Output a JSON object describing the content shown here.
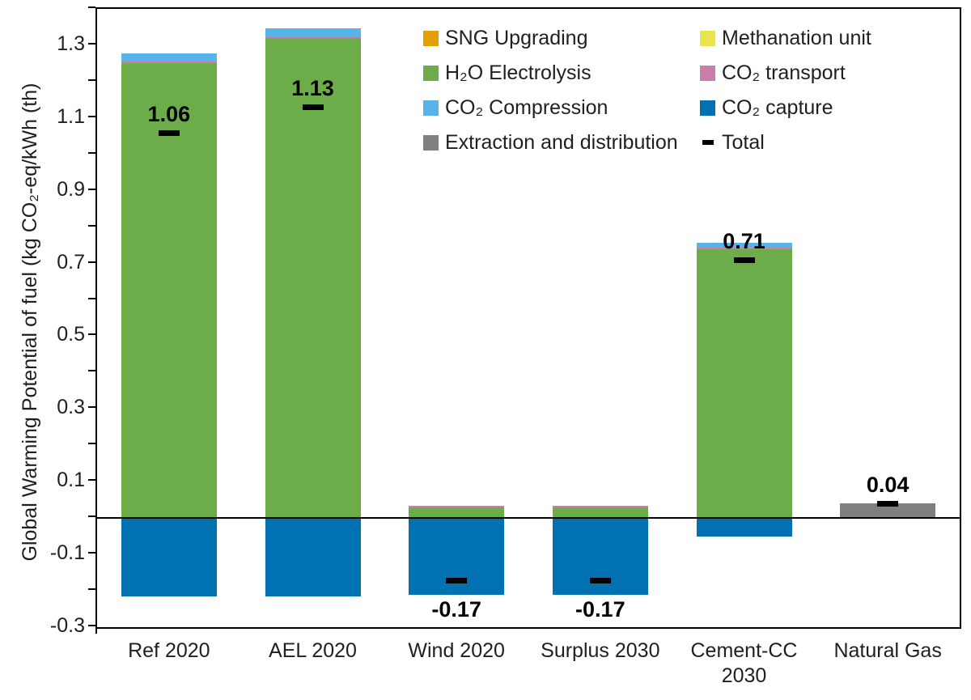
{
  "chart_data": {
    "type": "bar",
    "stacked": true,
    "ylabel": "Global Warming Potential of fuel (kg CO₂-eq/kWh (th)",
    "ylim": [
      -0.3,
      1.4
    ],
    "grid": false,
    "legend_position": "inside-top",
    "yticks": [
      {
        "value": 1.3,
        "label": "1.3"
      },
      {
        "value": 1.1,
        "label": "1.1"
      },
      {
        "value": 0.9,
        "label": "0.9"
      },
      {
        "value": 0.7,
        "label": "0.7"
      },
      {
        "value": 0.5,
        "label": "0.5"
      },
      {
        "value": 0.3,
        "label": "0.3"
      },
      {
        "value": 0.1,
        "label": "0.1"
      },
      {
        "value": -0.1,
        "label": "-0.1"
      },
      {
        "value": -0.3,
        "label": "-0.3"
      }
    ],
    "minor_tick_step": 0.1,
    "categories": [
      "Ref 2020",
      "AEL 2020",
      "Wind 2020",
      "Surplus 2030",
      "Cement-CC 2030",
      "Natural Gas"
    ],
    "series": [
      {
        "id": "sng-upgrading",
        "name": "SNG Upgrading",
        "color": "#E69F00",
        "values": [
          0,
          0,
          0,
          0,
          0,
          0
        ]
      },
      {
        "id": "methanation-unit",
        "name": "Methanation unit",
        "color": "#EAE54D",
        "values": [
          0,
          0,
          0,
          0,
          0,
          0
        ]
      },
      {
        "id": "h2o-electrolysis",
        "name": "H₂O Electrolysis",
        "color": "#6CAC49",
        "values": [
          1.25,
          1.32,
          0.03,
          0.03,
          0.74,
          0
        ]
      },
      {
        "id": "co2-transport",
        "name": "CO₂ transport",
        "color": "#C97FA9",
        "values": [
          0.005,
          0.005,
          0.004,
          0.004,
          0.004,
          0
        ]
      },
      {
        "id": "co2-compression",
        "name": "CO₂ Compression",
        "color": "#56B4E9",
        "values": [
          0.022,
          0.022,
          0,
          0,
          0.013,
          0
        ]
      },
      {
        "id": "co2-capture",
        "name": "CO₂ capture",
        "color": "#0072B2",
        "values": [
          -0.215,
          -0.215,
          -0.21,
          -0.21,
          -0.05,
          0
        ]
      },
      {
        "id": "extraction-and-distribution",
        "name": "Extraction and distribution",
        "color": "#7F7F7F",
        "values": [
          0,
          0,
          0,
          0,
          0,
          0.04
        ]
      }
    ],
    "totals": {
      "name": "Total",
      "marker_color": "#000000",
      "values": [
        1.06,
        1.13,
        -0.17,
        -0.17,
        0.71,
        0.04
      ],
      "labels": [
        "1.06",
        "1.13",
        "-0.17",
        "-0.17",
        "0.71",
        "0.04"
      ]
    },
    "legend": {
      "columns": [
        {
          "items": [
            {
              "label": "SNG Upgrading",
              "swatch": "square",
              "color": "#E69F00"
            },
            {
              "label": "H₂O Electrolysis",
              "swatch": "square",
              "color": "#6CAC49"
            },
            {
              "label": "CO₂  Compression",
              "swatch": "square",
              "color": "#56B4E9"
            },
            {
              "label": "Extraction and distribution",
              "swatch": "square",
              "color": "#7F7F7F"
            }
          ]
        },
        {
          "items": [
            {
              "label": "Methanation unit",
              "swatch": "square",
              "color": "#EAE54D"
            },
            {
              "label": "CO₂ transport",
              "swatch": "square",
              "color": "#C97FA9"
            },
            {
              "label": "CO₂ capture",
              "swatch": "square",
              "color": "#0072B2"
            },
            {
              "label": "Total",
              "swatch": "dash",
              "color": "#000000"
            }
          ]
        }
      ]
    }
  }
}
